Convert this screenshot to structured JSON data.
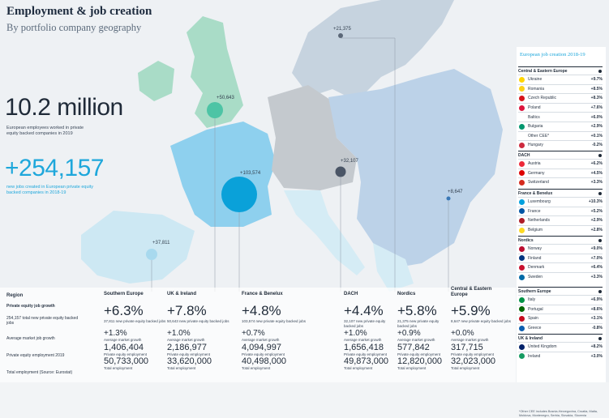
{
  "title": "Employment & job creation",
  "subtitle": "By portfolio company geography",
  "headline": {
    "employees_value": "10.2 million",
    "employees_desc": "European employees worked in private equity backed companies in 2019",
    "jobs_value": "+254,157",
    "jobs_desc": "new jobs created in European private equity backed companies in 2018-19"
  },
  "colors": {
    "accent": "#1ea7db",
    "uk_ireland": "#3dbf9f",
    "dark": "#1f2a38"
  },
  "chart_data": {
    "type": "bubble-map",
    "title": "Employment & job creation",
    "subtitle": "By portfolio company geography",
    "bubbles": [
      {
        "region": "UK & Ireland",
        "label": "+50,643",
        "value": 50643
      },
      {
        "region": "France & Benelux",
        "label": "+103,574",
        "value": 103574
      },
      {
        "region": "Southern Europe",
        "label": "+37,811",
        "value": 37811
      },
      {
        "region": "DACH",
        "label": "+32,107",
        "value": 32107
      },
      {
        "region": "Nordics",
        "label": "+21,375",
        "value": 21375
      },
      {
        "region": "Central & Eastern Europe",
        "label": "+8,647",
        "value": 8647
      }
    ],
    "table": {
      "row_labels": {
        "region": "Region",
        "growth": "Private equity job growth",
        "growth_desc": "254,157 total new private equity backed jobs",
        "market": "Average market job growth",
        "pe_employment": "Private equity employment 2019",
        "total_employment": "Total employment (Source: Eurostat)"
      },
      "columns": [
        {
          "region": "Southern Europe",
          "growth": "+6.3%",
          "new_jobs": "37,811 new private equity backed jobs",
          "market_growth": "+1.3%",
          "pe_employment": "1,406,404",
          "total_employment": "50,733,000"
        },
        {
          "region": "UK & Ireland",
          "growth": "+7.8%",
          "new_jobs": "50,643 new private equity backed jobs",
          "market_growth": "+1.0%",
          "pe_employment": "2,186,977",
          "total_employment": "33,620,000"
        },
        {
          "region": "France & Benelux",
          "growth": "+4.8%",
          "new_jobs": "103,574 new private equity backed jobs",
          "market_growth": "+0.7%",
          "pe_employment": "4,094,997",
          "total_employment": "40,498,000"
        },
        {
          "region": "DACH",
          "growth": "+4.4%",
          "new_jobs": "32,107 new private equity backed jobs",
          "market_growth": "+1.0%",
          "pe_employment": "1,656,418",
          "total_employment": "49,873,000"
        },
        {
          "region": "Nordics",
          "growth": "+5.8%",
          "new_jobs": "21,375 new private equity backed jobs",
          "market_growth": "+0.9%",
          "pe_employment": "577,842",
          "total_employment": "12,820,000"
        },
        {
          "region": "Central & Eastern Europe",
          "growth": "+5.9%",
          "new_jobs": "8,647 new private equity backed jobs",
          "market_growth": "+0.0%",
          "pe_employment": "317,715",
          "total_employment": "32,023,000"
        }
      ],
      "small_labels": {
        "market": "Average market growth",
        "pe": "Private equity employment",
        "total": "Total employment"
      }
    }
  },
  "panel": {
    "title": "European job creation 2018-19",
    "groups": [
      {
        "name": "Central & Eastern Europe",
        "rows": [
          {
            "country": "Ukraine",
            "value": "+9.7%",
            "flag": "#ffd500"
          },
          {
            "country": "Romania",
            "value": "+8.5%",
            "flag": "#fcd116"
          },
          {
            "country": "Czech Republic",
            "value": "+8.3%",
            "flag": "#d7141a"
          },
          {
            "country": "Poland",
            "value": "+7.6%",
            "flag": "#dc143c"
          },
          {
            "country": "Baltics",
            "value": "+6.0%",
            "flag": ""
          },
          {
            "country": "Bulgaria",
            "value": "+2.9%",
            "flag": "#00966e"
          },
          {
            "country": "Other CEE*",
            "value": "+0.1%",
            "flag": ""
          },
          {
            "country": "Hungary",
            "value": "-0.2%",
            "flag": "#cd2a3e"
          }
        ]
      },
      {
        "name": "DACH",
        "rows": [
          {
            "country": "Austria",
            "value": "+6.2%",
            "flag": "#ed2939"
          },
          {
            "country": "Germany",
            "value": "+4.5%",
            "flag": "#dd0000"
          },
          {
            "country": "Switzerland",
            "value": "+3.3%",
            "flag": "#d52b1e"
          }
        ]
      },
      {
        "name": "France & Benelux",
        "rows": [
          {
            "country": "Luxembourg",
            "value": "+10.3%",
            "flag": "#00a1de"
          },
          {
            "country": "France",
            "value": "+5.2%",
            "flag": "#0055a4"
          },
          {
            "country": "Netherlands",
            "value": "+2.9%",
            "flag": "#ae1c28"
          },
          {
            "country": "Belgium",
            "value": "+2.8%",
            "flag": "#fdda24"
          }
        ]
      },
      {
        "name": "Nordics",
        "rows": [
          {
            "country": "Norway",
            "value": "+9.0%",
            "flag": "#ba0c2f"
          },
          {
            "country": "Finland",
            "value": "+7.0%",
            "flag": "#003580"
          },
          {
            "country": "Denmark",
            "value": "+6.4%",
            "flag": "#c8102e"
          },
          {
            "country": "Sweden",
            "value": "+3.3%",
            "flag": "#006aa7"
          }
        ]
      },
      {
        "name": "Southern Europe",
        "rows": [
          {
            "country": "Italy",
            "value": "+6.9%",
            "flag": "#009246"
          },
          {
            "country": "Portugal",
            "value": "+8.6%",
            "flag": "#006600"
          },
          {
            "country": "Spain",
            "value": "+3.1%",
            "flag": "#c60b1e"
          },
          {
            "country": "Greece",
            "value": "-0.8%",
            "flag": "#0d5eaf"
          }
        ]
      },
      {
        "name": "UK & Ireland",
        "rows": [
          {
            "country": "United Kingdom",
            "value": "+8.2%",
            "flag": "#012169"
          },
          {
            "country": "Ireland",
            "value": "+3.0%",
            "flag": "#169b62"
          }
        ]
      }
    ],
    "footnote": "*Other CEE includes Bosnia-Herzegovina, Croatia, Malta, Moldova, Montenegro, Serbia, Slovakia, Slovenia"
  }
}
